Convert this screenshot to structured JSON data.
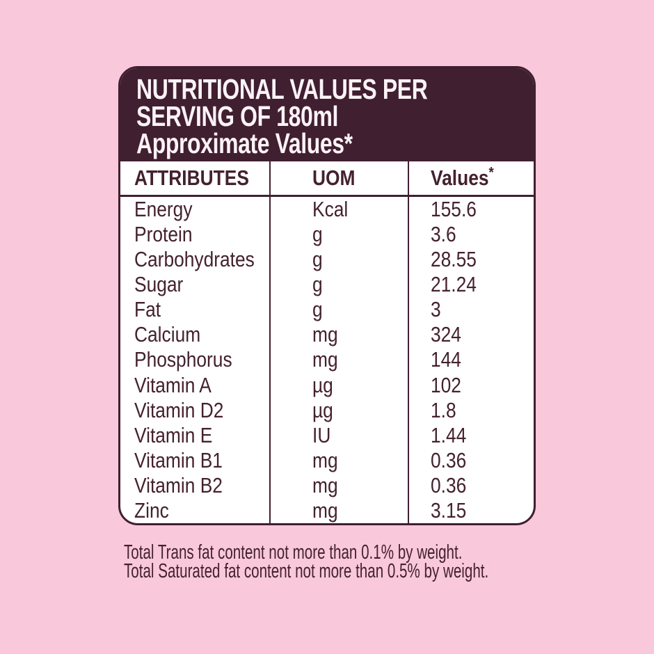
{
  "page": {
    "background_color": "#f9c8da"
  },
  "card": {
    "colors": {
      "header_background": "#401f30",
      "header_text": "#fbf3f6",
      "body_background": "#ffffff",
      "body_text": "#44212f",
      "border": "#401f30"
    },
    "header": {
      "title_line1": "NUTRITIONAL VALUES PER",
      "title_line2": "SERVING OF 180ml",
      "subtitle": "Approximate Values*"
    },
    "table": {
      "columns": [
        {
          "label": "ATTRIBUTES",
          "sup": ""
        },
        {
          "label": "UOM",
          "sup": ""
        },
        {
          "label": "Values",
          "sup": "*"
        }
      ],
      "rows": [
        {
          "attribute": "Energy",
          "uom": "Kcal",
          "value": "155.6"
        },
        {
          "attribute": "Protein",
          "uom": "g",
          "value": "3.6"
        },
        {
          "attribute": "Carbohydrates",
          "uom": "g",
          "value": "28.55"
        },
        {
          "attribute": "Sugar",
          "uom": "g",
          "value": "21.24"
        },
        {
          "attribute": "Fat",
          "uom": "g",
          "value": "3"
        },
        {
          "attribute": "Calcium",
          "uom": "mg",
          "value": "324"
        },
        {
          "attribute": "Phosphorus",
          "uom": "mg",
          "value": "144"
        },
        {
          "attribute": "Vitamin A",
          "uom": "µg",
          "value": "102"
        },
        {
          "attribute": "Vitamin D2",
          "uom": "µg",
          "value": "1.8"
        },
        {
          "attribute": "Vitamin E",
          "uom": "IU",
          "value": "1.44"
        },
        {
          "attribute": "Vitamin B1",
          "uom": "mg",
          "value": "0.36"
        },
        {
          "attribute": "Vitamin B2",
          "uom": "mg",
          "value": "0.36"
        },
        {
          "attribute": "Zinc",
          "uom": "mg",
          "value": "3.15"
        }
      ]
    }
  },
  "footnotes": {
    "line1": "Total Trans fat content not more than 0.1% by weight.",
    "line2": "Total Saturated fat content not more than 0.5% by weight."
  }
}
